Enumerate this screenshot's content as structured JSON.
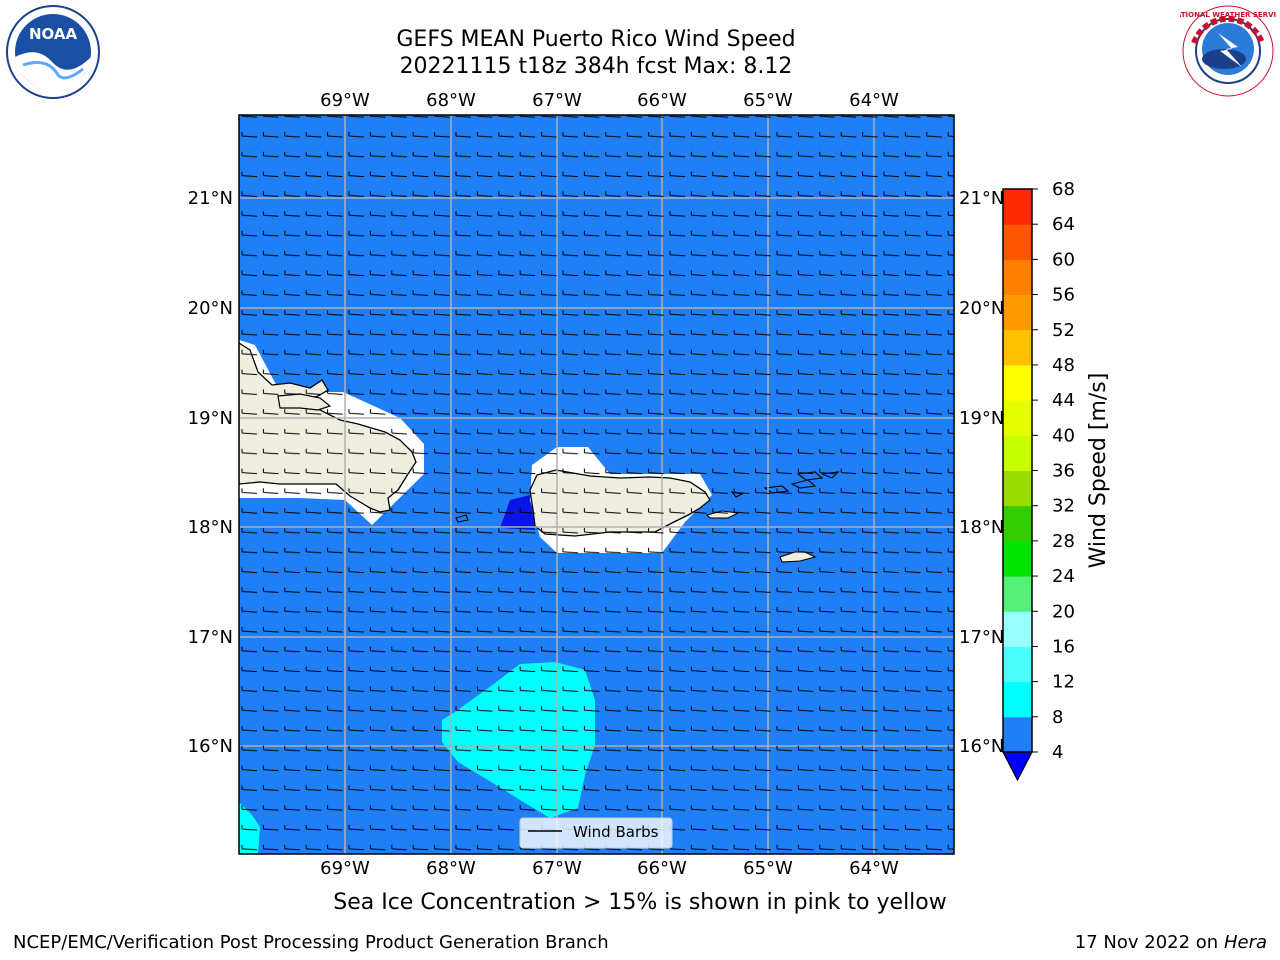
{
  "header": {
    "title_line1": "GEFS MEAN Puerto Rico Wind Speed",
    "title_line2": "20221115 t18z 384h fcst   Max: 8.12"
  },
  "logos": {
    "left_text": "NOAA",
    "right_text": "NATIONAL WEATHER SERVICE"
  },
  "map": {
    "lon_labels": [
      "69°W",
      "68°W",
      "67°W",
      "66°W",
      "65°W",
      "64°W"
    ],
    "lat_labels": [
      "21°N",
      "20°N",
      "19°N",
      "18°N",
      "17°N",
      "16°N"
    ],
    "legend_label": "Wind Barbs",
    "colors": {
      "ocean": "#1e7ff7",
      "land": "#efeee0",
      "low_wind": "#0a14e6",
      "cyan": "#00ffff",
      "grid": "#b0b0b0"
    }
  },
  "colorbar": {
    "label": "Wind Speed [m/s]",
    "ticks": [
      "4",
      "8",
      "12",
      "16",
      "20",
      "24",
      "28",
      "32",
      "36",
      "40",
      "44",
      "48",
      "52",
      "56",
      "60",
      "64",
      "68"
    ],
    "colors": [
      "#1e7ff7",
      "#00ffff",
      "#4cffff",
      "#99ffff",
      "#55f07a",
      "#00e400",
      "#33cc00",
      "#99dd00",
      "#c8ff00",
      "#e6ff00",
      "#ffff00",
      "#ffc000",
      "#ff9900",
      "#ff7f00",
      "#ff5500",
      "#ff2a00",
      "#ff0000"
    ],
    "extend_color": "#0000ff"
  },
  "caption": "Sea Ice Concentration > 15% is shown in pink to yellow",
  "footer": {
    "left": "NCEP/EMC/Verification Post Processing Product Generation Branch",
    "right_date": "17 Nov 2022 on",
    "right_machine": "Hera"
  }
}
